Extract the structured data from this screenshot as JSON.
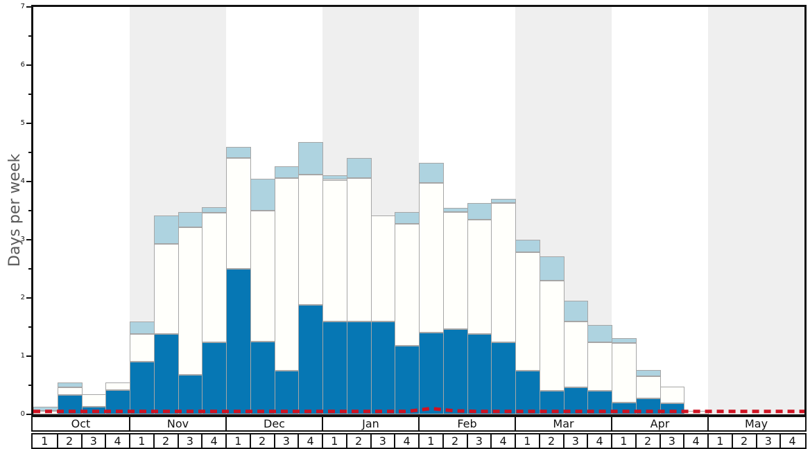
{
  "chart_data": {
    "type": "bar",
    "stacked": true,
    "title": "",
    "xlabel": "",
    "ylabel": "Days per week",
    "ylim": [
      0,
      7
    ],
    "y_ticks": [
      0,
      1,
      2,
      3,
      4,
      5,
      6,
      7
    ],
    "grid": false,
    "legend": "none",
    "months": [
      {
        "label": "Oct",
        "shaded": false
      },
      {
        "label": "Nov",
        "shaded": true
      },
      {
        "label": "Dec",
        "shaded": false
      },
      {
        "label": "Jan",
        "shaded": true
      },
      {
        "label": "Feb",
        "shaded": false
      },
      {
        "label": "Mar",
        "shaded": true
      },
      {
        "label": "Apr",
        "shaded": false
      },
      {
        "label": "May",
        "shaded": true
      }
    ],
    "week_labels": [
      "1",
      "2",
      "3",
      "4"
    ],
    "categories": [
      "Oct 1",
      "Oct 2",
      "Oct 3",
      "Oct 4",
      "Nov 1",
      "Nov 2",
      "Nov 3",
      "Nov 4",
      "Dec 1",
      "Dec 2",
      "Dec 3",
      "Dec 4",
      "Jan 1",
      "Jan 2",
      "Jan 3",
      "Jan 4",
      "Feb 1",
      "Feb 2",
      "Feb 3",
      "Feb 4",
      "Mar 1",
      "Mar 2",
      "Mar 3",
      "Mar 4",
      "Apr 1",
      "Apr 2",
      "Apr 3",
      "Apr 4",
      "May 1",
      "May 2",
      "May 3",
      "May 4"
    ],
    "series": [
      {
        "name": "dark-blue-segment",
        "color": "#0677b4",
        "values": [
          0.0,
          0.33,
          0.13,
          0.42,
          0.9,
          1.38,
          0.68,
          1.24,
          2.5,
          1.25,
          0.75,
          1.88,
          1.6,
          1.6,
          1.6,
          1.18,
          1.4,
          1.46,
          1.38,
          1.24,
          0.75,
          0.4,
          0.47,
          0.4,
          0.2,
          0.27,
          0.19,
          0.0,
          0,
          0,
          0,
          0
        ]
      },
      {
        "name": "white-segment",
        "color": "#fffffb",
        "values": [
          0.06,
          0.14,
          0.22,
          0.13,
          0.48,
          1.55,
          2.53,
          2.23,
          1.9,
          2.25,
          3.31,
          2.24,
          2.43,
          2.46,
          1.82,
          2.09,
          2.58,
          2.02,
          1.96,
          2.39,
          2.03,
          1.9,
          1.13,
          0.84,
          1.03,
          0.38,
          0.29,
          0.06,
          0,
          0,
          0,
          0
        ]
      },
      {
        "name": "light-blue-segment",
        "color": "#aed3e0",
        "values": [
          0.07,
          0.08,
          0.0,
          0.0,
          0.22,
          0.49,
          0.27,
          0.09,
          0.2,
          0.55,
          0.2,
          0.56,
          0.08,
          0.34,
          0.0,
          0.21,
          0.34,
          0.07,
          0.29,
          0.07,
          0.22,
          0.42,
          0.35,
          0.29,
          0.08,
          0.11,
          0.0,
          0.0,
          0,
          0,
          0,
          0
        ]
      }
    ],
    "red_dashed_line": {
      "name": "red-dashed-baseline",
      "color": "#cf1222",
      "values": [
        0.05,
        0.05,
        0.05,
        0.05,
        0.05,
        0.05,
        0.05,
        0.05,
        0.05,
        0.05,
        0.05,
        0.05,
        0.05,
        0.05,
        0.05,
        0.05,
        0.1,
        0.06,
        0.05,
        0.05,
        0.05,
        0.05,
        0.05,
        0.05,
        0.05,
        0.05,
        0.05,
        0.05,
        0.05,
        0.05,
        0.05,
        0.05
      ]
    },
    "colors": {
      "dark_blue": "#0677b4",
      "light_blue": "#aed3e0",
      "bar_white": "#fffffb",
      "bar_border": "#a6a6a6",
      "shaded_band": "#efefef",
      "red_line": "#cf1222",
      "axis_black": "#111111",
      "ylabel_gray": "#595959"
    }
  }
}
